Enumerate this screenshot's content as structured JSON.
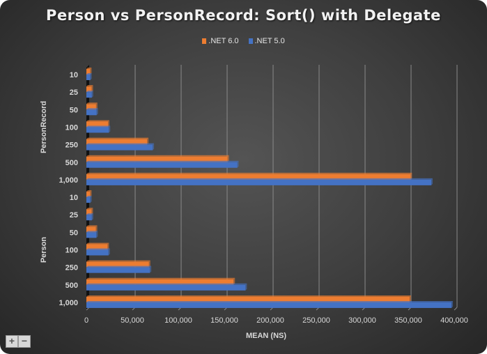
{
  "chart_data": {
    "type": "bar",
    "orientation": "horizontal",
    "title": "Person vs PersonRecord: Sort() with Delegate",
    "xlabel": "MEAN (NS)",
    "ylabel": "",
    "xlim": [
      0,
      400000
    ],
    "xticks": [
      "0",
      "50,000",
      "100,000",
      "150,000",
      "200,000",
      "250,000",
      "300,000",
      "350,000",
      "400,000"
    ],
    "grid": true,
    "legend_position": "top",
    "groups": [
      {
        "name": "PersonRecord",
        "categories": [
          "10",
          "25",
          "50",
          "100",
          "250",
          "500",
          "1,000"
        ]
      },
      {
        "name": "Person",
        "categories": [
          "10",
          "25",
          "50",
          "100",
          "250",
          "500",
          "1,000"
        ]
      }
    ],
    "series": [
      {
        "name": ".NET 6.0",
        "color": "#ed7d31",
        "values": [
          [
            1100,
            2700,
            7500,
            20500,
            63000,
            150500,
            349500
          ],
          [
            1100,
            2600,
            7300,
            20000,
            65000,
            157000,
            348500
          ]
        ]
      },
      {
        "name": ".NET 5.0",
        "color": "#4472c4",
        "values": [
          [
            1200,
            2900,
            8100,
            21400,
            69000,
            161000,
            372000
          ],
          [
            1200,
            2900,
            7800,
            21000,
            66000,
            170000,
            394000
          ]
        ]
      }
    ]
  },
  "zoom_controls": {
    "plus": "+",
    "minus": "−"
  }
}
